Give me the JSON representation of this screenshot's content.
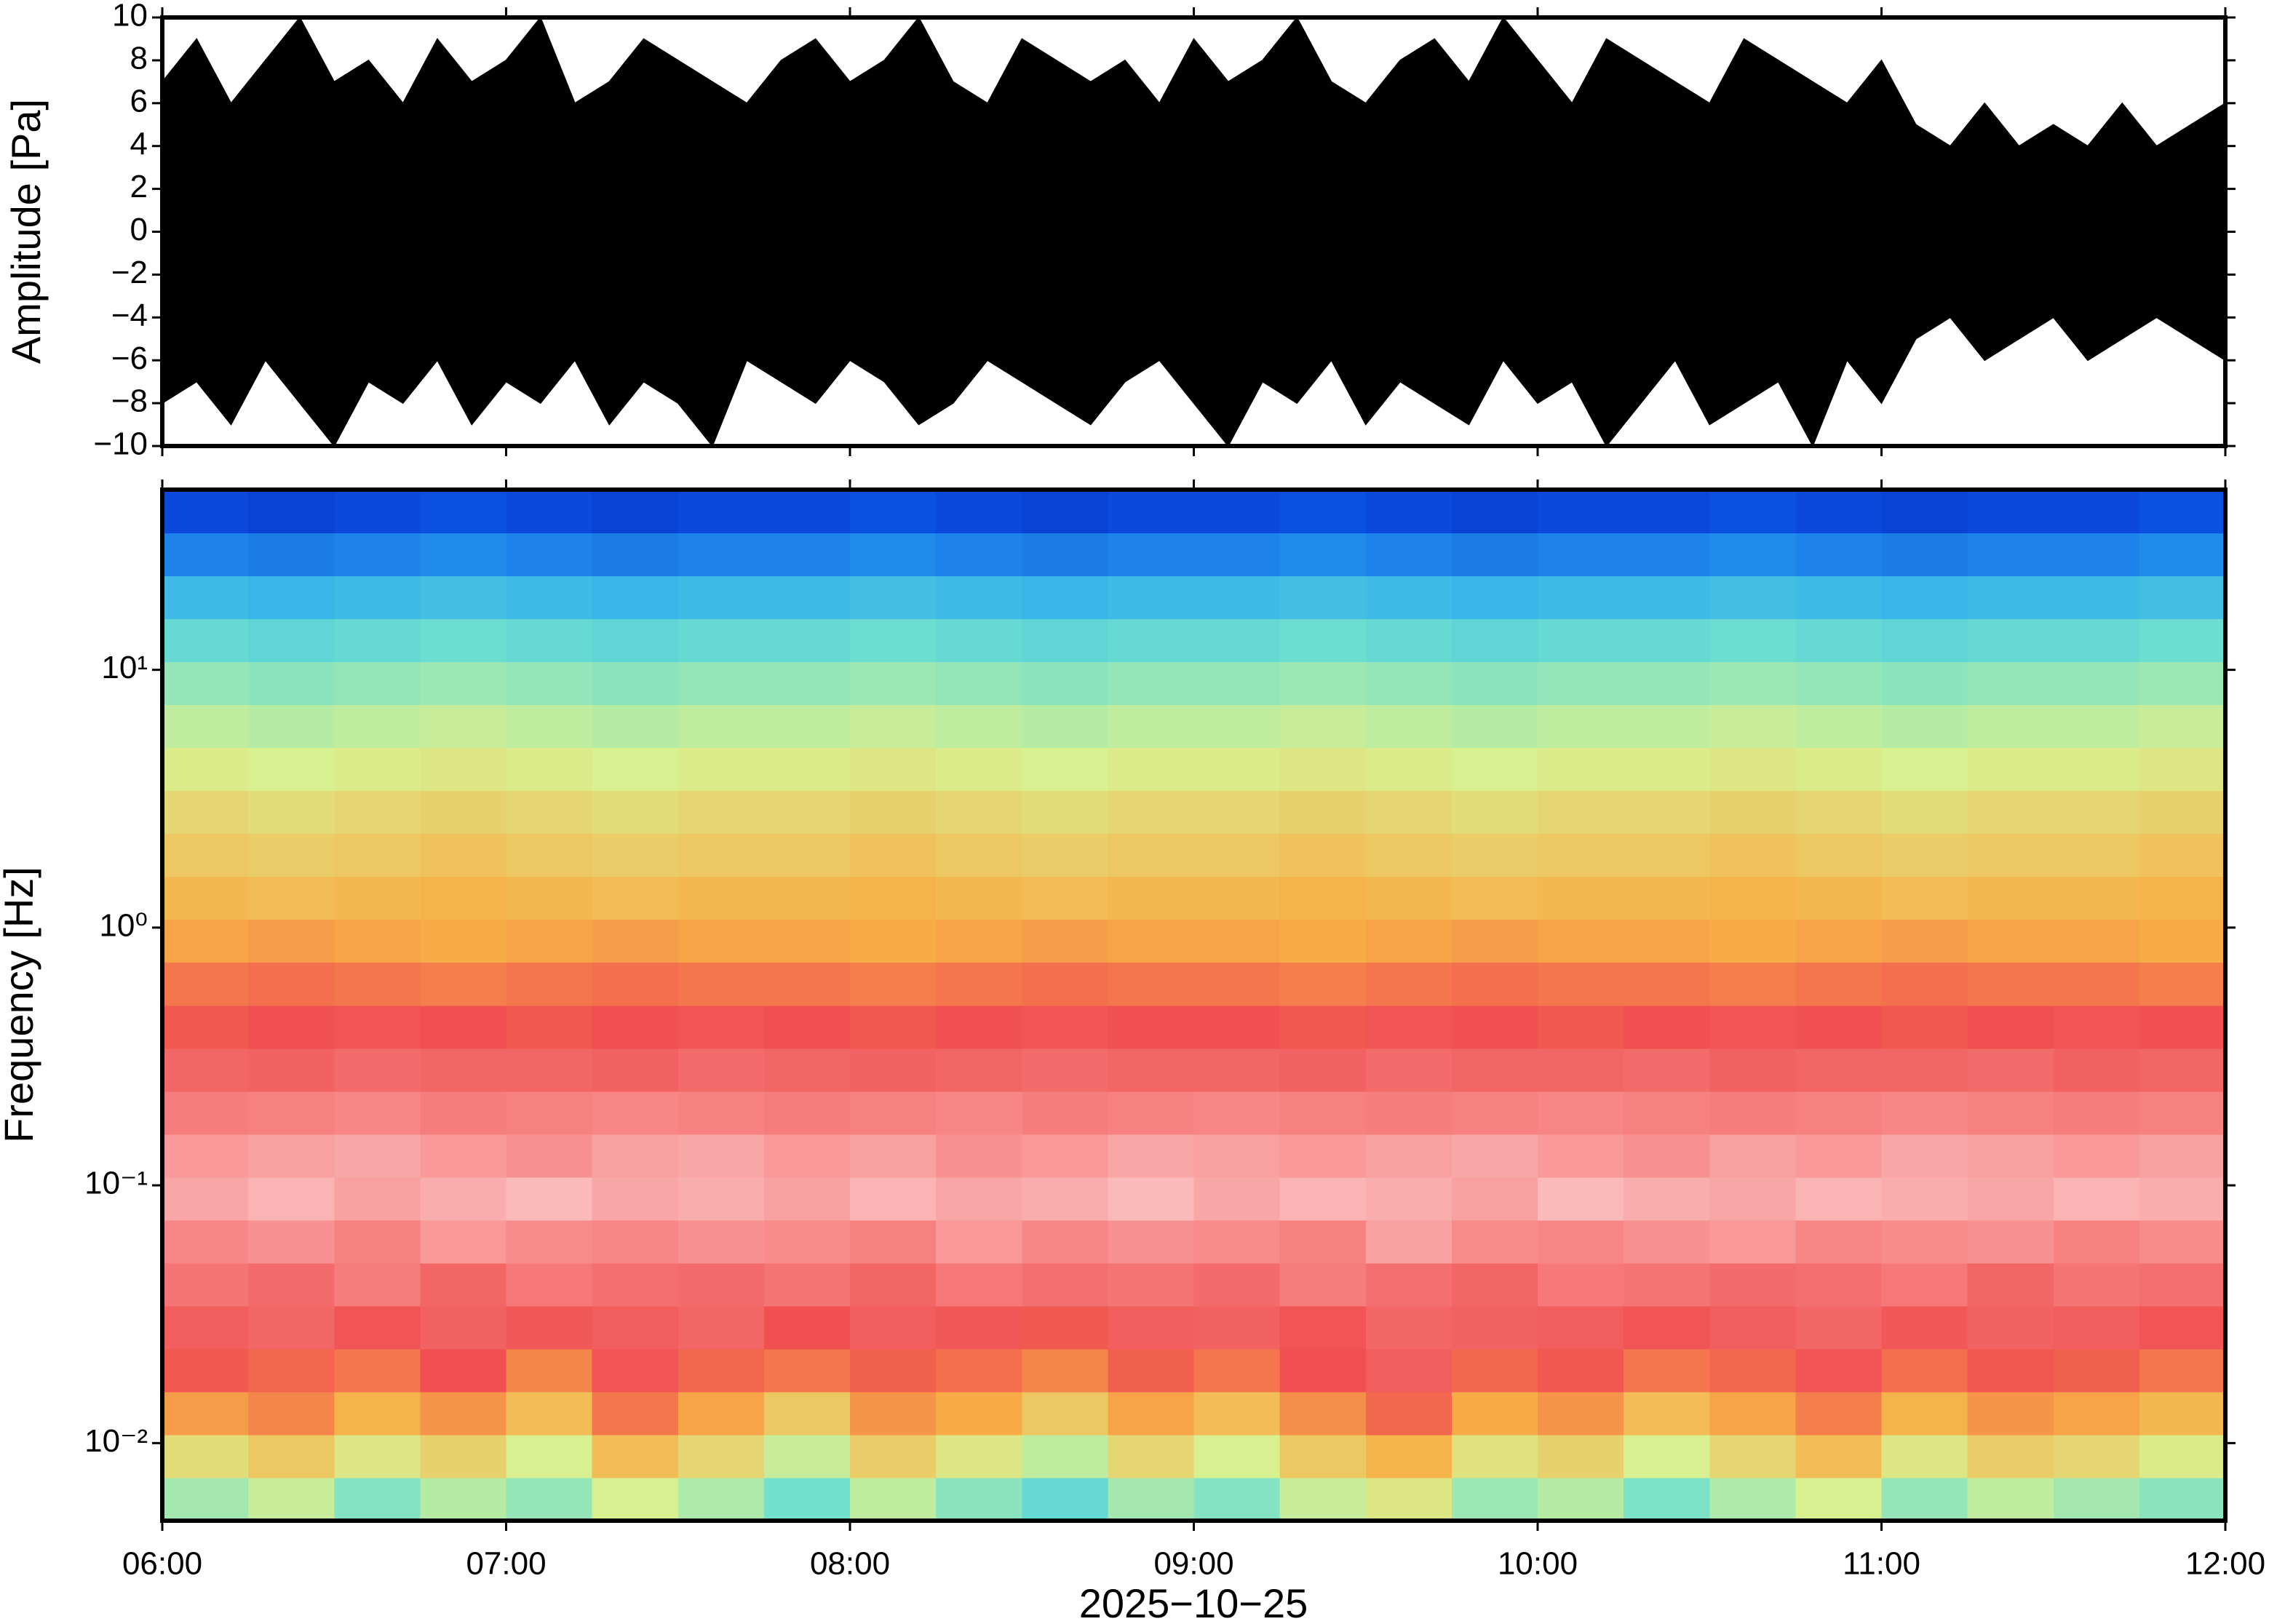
{
  "chart_data": [
    {
      "type": "area",
      "ylabel": "Amplitude [Pa]",
      "xlim": [
        6,
        12
      ],
      "ylim": [
        -10,
        10
      ],
      "yticks": [
        {
          "value": -10,
          "label": "−10"
        },
        {
          "value": -8,
          "label": "−8"
        },
        {
          "value": -6,
          "label": "−6"
        },
        {
          "value": -4,
          "label": "−4"
        },
        {
          "value": -2,
          "label": "−2"
        },
        0,
        2,
        4,
        6,
        8,
        10
      ],
      "x": [
        6,
        6.1,
        6.2,
        6.3,
        6.4,
        6.5,
        6.6,
        6.7,
        6.8,
        6.9,
        7,
        7.1,
        7.2,
        7.3,
        7.4,
        7.5,
        7.6,
        7.7,
        7.8,
        7.9,
        8,
        8.1,
        8.2,
        8.3,
        8.4,
        8.5,
        8.6,
        8.7,
        8.8,
        8.9,
        9,
        9.1,
        9.2,
        9.3,
        9.4,
        9.5,
        9.6,
        9.7,
        9.8,
        9.9,
        10,
        10.1,
        10.2,
        10.3,
        10.4,
        10.5,
        10.6,
        10.7,
        10.8,
        10.9,
        11,
        11.1,
        11.2,
        11.3,
        11.4,
        11.5,
        11.6,
        11.7,
        11.8,
        11.9,
        12
      ],
      "series": [
        {
          "color": "#000000",
          "values": [
            7,
            9,
            6,
            8,
            10,
            7,
            8,
            6,
            9,
            7,
            8,
            10,
            6,
            7,
            9,
            8,
            7,
            6,
            8,
            9,
            7,
            8,
            10,
            7,
            6,
            9,
            8,
            7,
            8,
            6,
            9,
            7,
            8,
            10,
            7,
            6,
            8,
            9,
            7,
            10,
            8,
            6,
            9,
            8,
            7,
            6,
            9,
            8,
            7,
            6,
            8,
            5,
            4,
            6,
            4,
            5,
            4,
            6,
            4,
            5,
            6
          ]
        },
        {
          "color": "#000000",
          "values": [
            -8,
            -7,
            -9,
            -6,
            -8,
            -10,
            -7,
            -8,
            -6,
            -9,
            -7,
            -8,
            -6,
            -9,
            -7,
            -8,
            -10,
            -6,
            -7,
            -8,
            -6,
            -7,
            -9,
            -8,
            -6,
            -7,
            -8,
            -9,
            -7,
            -6,
            -8,
            -10,
            -7,
            -8,
            -6,
            -9,
            -7,
            -8,
            -9,
            -6,
            -8,
            -7,
            -10,
            -8,
            -6,
            -9,
            -8,
            -7,
            -10,
            -6,
            -8,
            -5,
            -4,
            -6,
            -5,
            -4,
            -6,
            -5,
            -4,
            -5,
            -6
          ]
        }
      ]
    },
    {
      "type": "heatmap",
      "ylabel": "Frequency [Hz]",
      "xlabel": "2025−10−25",
      "xlim": [
        6,
        12
      ],
      "xticks": [
        {
          "value": 6,
          "label": "06:00"
        },
        {
          "value": 7,
          "label": "07:00"
        },
        {
          "value": 8,
          "label": "08:00"
        },
        {
          "value": 9,
          "label": "09:00"
        },
        {
          "value": 10,
          "label": "10:00"
        },
        {
          "value": 11,
          "label": "11:00"
        },
        {
          "value": 12,
          "label": "12:00"
        }
      ],
      "ylim": [
        0.005,
        50
      ],
      "log_y": true,
      "yticks": [
        {
          "value": 0.01,
          "label": "10⁻²"
        },
        {
          "value": 0.1,
          "label": "10⁻¹"
        },
        {
          "value": 1,
          "label": "10⁰"
        },
        {
          "value": 10,
          "label": "10¹"
        }
      ],
      "clim": [
        0,
        100
      ],
      "colormap": [
        "#000080",
        "#0a4ce0",
        "#2aa8f0",
        "#6ee0d0",
        "#d8f090",
        "#f8b048",
        "#f05050",
        "#f88888",
        "#fcdcdc"
      ],
      "x_bins": [
        6,
        6.25,
        6.5,
        6.75,
        7,
        7.25,
        7.5,
        7.75,
        8,
        8.25,
        8.5,
        8.75,
        9,
        9.25,
        9.5,
        9.75,
        10,
        10.25,
        10.5,
        10.75,
        11,
        11.25,
        11.5,
        11.75,
        12
      ],
      "y_bins": [
        0.005,
        0.00734,
        0.01077,
        0.01581,
        0.02321,
        0.03406,
        0.05,
        0.0734,
        0.1077,
        0.1581,
        0.2321,
        0.3406,
        0.5,
        0.734,
        1.077,
        1.581,
        2.321,
        3.406,
        5,
        7.34,
        10.77,
        15.81,
        23.21,
        34.06,
        50
      ],
      "values": [
        [
          44,
          48,
          40,
          46,
          42,
          50,
          45,
          38,
          47,
          41,
          36,
          44,
          40,
          48,
          52,
          43,
          46,
          39,
          45,
          50,
          42,
          47,
          44,
          41
        ],
        [
          54,
          58,
          52,
          56,
          50,
          60,
          55,
          48,
          57,
          52,
          47,
          55,
          50,
          58,
          62,
          53,
          56,
          50,
          55,
          60,
          52,
          57,
          55,
          51
        ],
        [
          65,
          68,
          62,
          66,
          60,
          70,
          64,
          58,
          66,
          63,
          58,
          64,
          60,
          67,
          72,
          63,
          66,
          60,
          64,
          69,
          62,
          66,
          64,
          61
        ],
        [
          74,
          72,
          70,
          75,
          68,
          76,
          72,
          70,
          73,
          71,
          68,
          73,
          70,
          75,
          78,
          72,
          74,
          70,
          72,
          76,
          71,
          74,
          73,
          70
        ],
        [
          78,
          80,
          76,
          79,
          77,
          78,
          80,
          75,
          78,
          77,
          74,
          78,
          79,
          76,
          80,
          79,
          78,
          76,
          78,
          80,
          77,
          79,
          78,
          76
        ],
        [
          83,
          81,
          85,
          80,
          84,
          82,
          81,
          83,
          80,
          84,
          82,
          83,
          81,
          85,
          82,
          80,
          84,
          83,
          81,
          82,
          84,
          80,
          83,
          82
        ],
        [
          87,
          89,
          86,
          90,
          88,
          87,
          89,
          88,
          86,
          90,
          87,
          89,
          88,
          86,
          91,
          88,
          87,
          89,
          90,
          87,
          88,
          89,
          86,
          88
        ],
        [
          92,
          94,
          91,
          93,
          95,
          92,
          93,
          91,
          94,
          92,
          93,
          95,
          92,
          94,
          93,
          91,
          95,
          93,
          92,
          94,
          93,
          92,
          94,
          93
        ],
        [
          90,
          91,
          92,
          90,
          89,
          91,
          92,
          90,
          91,
          89,
          90,
          92,
          91,
          90,
          91,
          92,
          90,
          89,
          91,
          90,
          92,
          91,
          90,
          91
        ],
        [
          85,
          86,
          87,
          85,
          86,
          87,
          86,
          85,
          86,
          87,
          85,
          86,
          87,
          86,
          85,
          86,
          87,
          86,
          85,
          86,
          87,
          86,
          85,
          86
        ],
        [
          80,
          79,
          81,
          80,
          80,
          79,
          81,
          80,
          79,
          80,
          81,
          80,
          80,
          79,
          81,
          80,
          80,
          81,
          79,
          80,
          80,
          81,
          79,
          80
        ],
        [
          74,
          75,
          76,
          75,
          74,
          75,
          76,
          75,
          74,
          75,
          76,
          75,
          75,
          74,
          76,
          75,
          74,
          75,
          76,
          75,
          74,
          75,
          76,
          75
        ],
        [
          70,
          71,
          70,
          69,
          70,
          71,
          70,
          70,
          69,
          70,
          71,
          70,
          70,
          69,
          70,
          71,
          70,
          70,
          69,
          70,
          71,
          70,
          70,
          69
        ],
        [
          64,
          65,
          64,
          63,
          64,
          65,
          64,
          64,
          63,
          64,
          65,
          64,
          64,
          63,
          64,
          65,
          64,
          64,
          63,
          64,
          65,
          64,
          64,
          63
        ],
        [
          61,
          60,
          61,
          62,
          61,
          60,
          61,
          61,
          62,
          61,
          60,
          61,
          61,
          62,
          61,
          60,
          61,
          61,
          62,
          61,
          60,
          61,
          61,
          62
        ],
        [
          58,
          57,
          58,
          59,
          58,
          57,
          58,
          58,
          59,
          58,
          57,
          58,
          58,
          59,
          58,
          57,
          58,
          58,
          59,
          58,
          57,
          58,
          58,
          59
        ],
        [
          55,
          54,
          55,
          56,
          55,
          54,
          55,
          55,
          56,
          55,
          54,
          55,
          55,
          56,
          55,
          54,
          55,
          55,
          56,
          55,
          54,
          55,
          55,
          56
        ],
        [
          51,
          50,
          51,
          52,
          51,
          50,
          51,
          51,
          52,
          51,
          50,
          51,
          51,
          52,
          51,
          50,
          51,
          51,
          52,
          51,
          50,
          51,
          51,
          52
        ],
        [
          47,
          46,
          47,
          48,
          47,
          46,
          47,
          47,
          48,
          47,
          46,
          47,
          47,
          48,
          47,
          46,
          47,
          47,
          48,
          47,
          46,
          47,
          47,
          48
        ],
        [
          42,
          41,
          42,
          43,
          42,
          41,
          42,
          42,
          43,
          42,
          41,
          42,
          42,
          43,
          42,
          41,
          42,
          42,
          43,
          42,
          41,
          42,
          42,
          43
        ],
        [
          36,
          35,
          36,
          37,
          36,
          35,
          36,
          36,
          37,
          36,
          35,
          36,
          36,
          37,
          36,
          35,
          36,
          36,
          37,
          36,
          35,
          36,
          36,
          37
        ],
        [
          29,
          28,
          29,
          30,
          29,
          28,
          29,
          29,
          30,
          29,
          28,
          29,
          29,
          30,
          29,
          28,
          29,
          29,
          30,
          29,
          28,
          29,
          29,
          30
        ],
        [
          20,
          19,
          20,
          21,
          20,
          19,
          20,
          20,
          21,
          20,
          19,
          20,
          20,
          21,
          20,
          19,
          20,
          20,
          21,
          20,
          19,
          20,
          20,
          21
        ],
        [
          12,
          11,
          12,
          13,
          12,
          11,
          12,
          12,
          13,
          12,
          11,
          12,
          12,
          13,
          12,
          11,
          12,
          12,
          13,
          12,
          11,
          12,
          12,
          13
        ]
      ]
    }
  ]
}
